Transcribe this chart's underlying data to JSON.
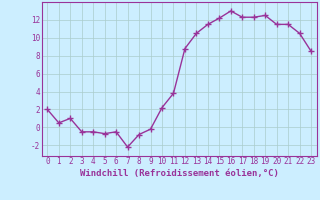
{
  "x": [
    0,
    1,
    2,
    3,
    4,
    5,
    6,
    7,
    8,
    9,
    10,
    11,
    12,
    13,
    14,
    15,
    16,
    17,
    18,
    19,
    20,
    21,
    22,
    23
  ],
  "y": [
    2.0,
    0.5,
    1.0,
    -0.5,
    -0.5,
    -0.7,
    -0.5,
    -2.2,
    -0.8,
    -0.2,
    2.2,
    3.8,
    8.8,
    10.5,
    11.5,
    12.2,
    13.0,
    12.3,
    12.3,
    12.5,
    11.5,
    11.5,
    10.5,
    8.5
  ],
  "line_color": "#993399",
  "marker": "+",
  "marker_size": 4,
  "xlabel": "Windchill (Refroidissement éolien,°C)",
  "xlabel_fontsize": 6.5,
  "xlim": [
    -0.5,
    23.5
  ],
  "ylim": [
    -3.2,
    14.0
  ],
  "yticks": [
    -2,
    0,
    2,
    4,
    6,
    8,
    10,
    12
  ],
  "xticks": [
    0,
    1,
    2,
    3,
    4,
    5,
    6,
    7,
    8,
    9,
    10,
    11,
    12,
    13,
    14,
    15,
    16,
    17,
    18,
    19,
    20,
    21,
    22,
    23
  ],
  "bg_color": "#cceeff",
  "grid_color": "#aacccc",
  "tick_fontsize": 5.5,
  "line_width": 1.0
}
